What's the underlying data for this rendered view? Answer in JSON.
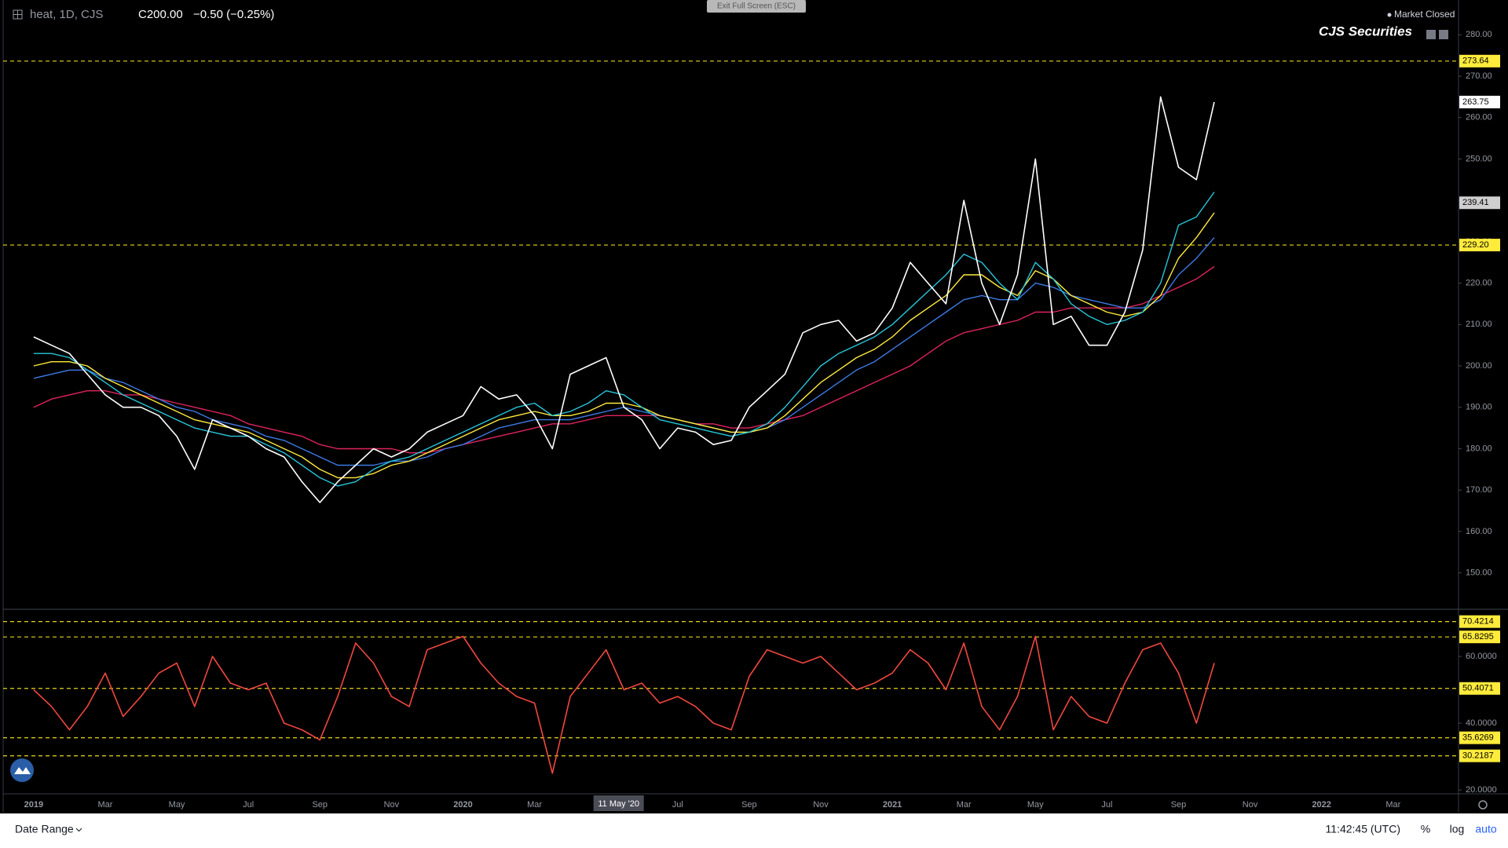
{
  "header": {
    "symbol": "heat, 1D, CJS",
    "close": "C200.00",
    "change": "−0.50 (−0.25%)",
    "fullscreen": "Exit Full Screen (ESC)",
    "status": "Market Closed",
    "brand": "CJS Securities"
  },
  "chart_data": [
    {
      "type": "line",
      "ylim": [
        141.2,
        288.4
      ],
      "yticks": [
        {
          "value": 150,
          "label": "150.00"
        },
        {
          "value": 160,
          "label": "160.00"
        },
        {
          "value": 170,
          "label": "170.00"
        },
        {
          "value": 180,
          "label": "180.00"
        },
        {
          "value": 190,
          "label": "190.00"
        },
        {
          "value": 200,
          "label": "200.00"
        },
        {
          "value": 210,
          "label": "210.00"
        },
        {
          "value": 220,
          "label": "220.00"
        },
        {
          "value": 230,
          "label": "230.00"
        },
        {
          "value": 240,
          "label": "240.00"
        },
        {
          "value": 250,
          "label": "250.00"
        },
        {
          "value": 260,
          "label": "260.00"
        },
        {
          "value": 270,
          "label": "270.00"
        },
        {
          "value": 280,
          "label": "280.00"
        }
      ],
      "levels": [
        273.64,
        {
          "value": 229.2,
          "label": "229.20"
        }
      ],
      "crosshair_price": 239.41,
      "series": [
        {
          "color": "#e0245e",
          "values": [
            190,
            192,
            193,
            194,
            194,
            193,
            193,
            192,
            191,
            190,
            189,
            188,
            186,
            185,
            184,
            183,
            181,
            180,
            180,
            180,
            180,
            179,
            179,
            180,
            181,
            182,
            183,
            184,
            185,
            186,
            186,
            187,
            188,
            188,
            188,
            188,
            187,
            186,
            186,
            185,
            185,
            186,
            187,
            188,
            190,
            192,
            194,
            196,
            198,
            200,
            203,
            206,
            208,
            209,
            210,
            211,
            213,
            213,
            214,
            214,
            214,
            214,
            215,
            217,
            219,
            221,
            224,
            null,
            null,
            null,
            null,
            null,
            null,
            null,
            null,
            null,
            null
          ]
        },
        {
          "color": "#3d7be6",
          "values": [
            197,
            198,
            199,
            199,
            197,
            196,
            194,
            192,
            190,
            189,
            187,
            186,
            185,
            183,
            182,
            180,
            178,
            176,
            176,
            176,
            177,
            177,
            178,
            180,
            181,
            183,
            185,
            186,
            187,
            187,
            187,
            188,
            189,
            190,
            189,
            188,
            187,
            186,
            185,
            184,
            184,
            185,
            187,
            190,
            193,
            196,
            199,
            201,
            204,
            207,
            210,
            213,
            216,
            217,
            216,
            216,
            220,
            219,
            217,
            216,
            215,
            214,
            214,
            216,
            222,
            226,
            231,
            null,
            null,
            null,
            null,
            null,
            null,
            null,
            null,
            null,
            null
          ]
        },
        {
          "color": "#ffeb3b",
          "values": [
            200,
            201,
            201,
            200,
            197,
            195,
            193,
            191,
            189,
            187,
            186,
            185,
            184,
            182,
            180,
            178,
            175,
            173,
            173,
            174,
            176,
            177,
            179,
            181,
            183,
            185,
            187,
            188,
            189,
            188,
            188,
            189,
            191,
            191,
            190,
            188,
            187,
            186,
            185,
            184,
            184,
            185,
            188,
            192,
            196,
            199,
            202,
            204,
            207,
            211,
            214,
            217,
            222,
            222,
            219,
            217,
            223,
            221,
            217,
            215,
            213,
            212,
            213,
            217,
            226,
            231,
            237,
            null,
            null,
            null,
            null,
            null,
            null,
            null,
            null,
            null,
            null
          ]
        },
        {
          "color": "#26c6da",
          "values": [
            203,
            203,
            202,
            199,
            196,
            193,
            191,
            189,
            187,
            185,
            184,
            183,
            183,
            181,
            179,
            176,
            173,
            171,
            172,
            175,
            177,
            178,
            180,
            182,
            184,
            186,
            188,
            190,
            191,
            188,
            189,
            191,
            194,
            193,
            190,
            187,
            186,
            185,
            184,
            183,
            184,
            186,
            190,
            195,
            200,
            203,
            205,
            207,
            210,
            214,
            218,
            222,
            227,
            225,
            220,
            216,
            225,
            221,
            215,
            212,
            210,
            211,
            213,
            220,
            234,
            236,
            242,
            null,
            null,
            null,
            null,
            null,
            null,
            null,
            null,
            null,
            null
          ]
        },
        {
          "color": "#ffffff",
          "values": [
            207,
            205,
            203,
            198,
            193,
            190,
            190,
            188,
            183,
            175,
            187,
            185,
            183,
            180,
            178,
            172,
            167,
            172,
            176,
            180,
            178,
            180,
            184,
            186,
            188,
            195,
            192,
            193,
            188,
            180,
            198,
            200,
            202,
            190,
            187,
            180,
            185,
            184,
            181,
            182,
            190,
            194,
            198,
            208,
            210,
            211,
            206,
            208,
            214,
            225,
            220,
            215,
            240,
            220,
            210,
            222,
            250,
            210,
            212,
            205,
            205,
            213,
            228,
            265,
            248,
            245,
            263.75,
            null,
            null,
            null,
            null,
            null,
            null,
            null,
            null,
            null,
            null
          ]
        }
      ]
    },
    {
      "type": "line",
      "ylim": [
        18.85,
        74.1
      ],
      "yticks": [
        {
          "value": 20,
          "label": "20.0000"
        },
        {
          "value": 40,
          "label": "40.0000"
        },
        {
          "value": 60,
          "label": "60.0000"
        }
      ],
      "levels": [
        70.4214,
        65.8295,
        50.4071,
        35.6269,
        30.2187
      ],
      "crosshair_label": "11 May '20",
      "categories": [
        "2019",
        null,
        null,
        null,
        "Mar",
        null,
        null,
        null,
        "May",
        null,
        null,
        null,
        "Jul",
        null,
        null,
        null,
        "Sep",
        null,
        null,
        null,
        "Nov",
        null,
        null,
        null,
        "2020",
        null,
        null,
        null,
        "Mar",
        null,
        null,
        null,
        null,
        null,
        null,
        null,
        "Jul",
        null,
        null,
        null,
        "Sep",
        null,
        null,
        null,
        "Nov",
        null,
        null,
        null,
        "2021",
        null,
        null,
        null,
        "Mar",
        null,
        null,
        null,
        "May",
        null,
        null,
        null,
        "Jul",
        null,
        null,
        null,
        "Sep",
        null,
        null,
        null,
        "Nov",
        null,
        null,
        null,
        "2022",
        null,
        null,
        null,
        "Mar"
      ],
      "series": [
        {
          "color": "#f0483e",
          "values": [
            50,
            45,
            38,
            45,
            55,
            42,
            48,
            55,
            58,
            45,
            60,
            52,
            50,
            52,
            40,
            38,
            35,
            48,
            64,
            58,
            48,
            45,
            62,
            64,
            66,
            58,
            52,
            48,
            46,
            25,
            48,
            55,
            62,
            50,
            52,
            46,
            48,
            45,
            40,
            38,
            54,
            62,
            60,
            58,
            60,
            55,
            50,
            52,
            55,
            62,
            58,
            50,
            64,
            45,
            38,
            48,
            66,
            38,
            48,
            42,
            40,
            52,
            62,
            64,
            55,
            40,
            58,
            null,
            null,
            null,
            null,
            null,
            null,
            null,
            null,
            null,
            null
          ]
        }
      ]
    }
  ],
  "footer": {
    "range": "Date Range",
    "time": "11:42:45 (UTC)",
    "percent": "%",
    "log": "log",
    "auto": "auto"
  }
}
